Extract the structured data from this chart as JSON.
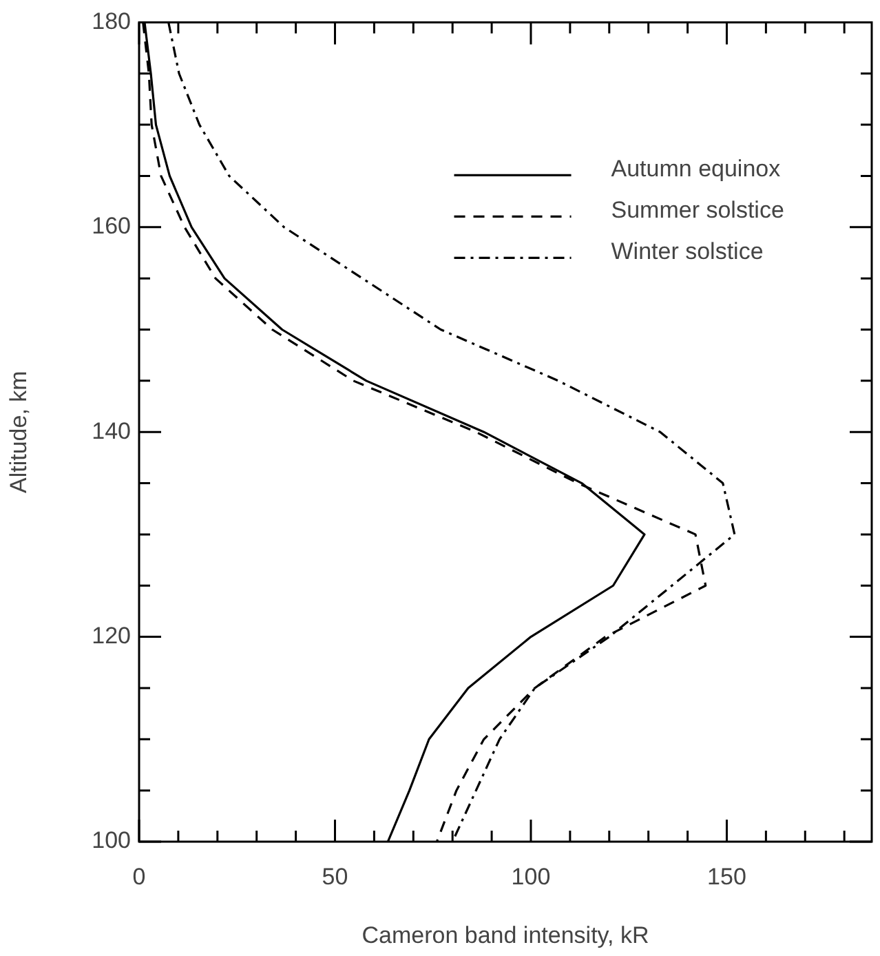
{
  "chart_data": {
    "type": "line",
    "orientation": "horizontal",
    "xlabel": "Cameron band intensity, kR",
    "ylabel": "Altitude, km",
    "x": [
      180,
      175,
      170,
      165,
      160,
      155,
      150,
      145,
      140,
      135,
      130,
      125,
      120,
      115,
      110,
      105,
      100
    ],
    "series": [
      {
        "name": "Autumn equinox",
        "color": "#000000",
        "line_style": "solid",
        "values": [
          1.4,
          3,
          4.3,
          7.8,
          13.4,
          21.8,
          36.5,
          58,
          88,
          113,
          129,
          121,
          100,
          84,
          74,
          69,
          63.5
        ]
      },
      {
        "name": "Summer solstice",
        "color": "#000000",
        "line_style": "dashed",
        "values": [
          1,
          2.5,
          3.2,
          5.6,
          11.6,
          19.5,
          34,
          54.7,
          86,
          112,
          142,
          144.6,
          119,
          101,
          88,
          81,
          76
        ]
      },
      {
        "name": "Winter solstice",
        "color": "#000000",
        "line_style": "dashdot",
        "values": [
          7.5,
          10.2,
          15.4,
          23,
          37,
          57,
          77,
          107,
          133,
          149,
          152,
          136,
          120,
          101,
          92,
          86,
          80
        ]
      }
    ],
    "xlim": [
      0,
      187
    ],
    "xticks": [
      0,
      {
        "value": 10,
        "label": null
      },
      {
        "value": 20,
        "label": null
      },
      {
        "value": 30,
        "label": null
      },
      {
        "value": 40,
        "label": null
      },
      50,
      {
        "value": 60,
        "label": null
      },
      {
        "value": 70,
        "label": null
      },
      {
        "value": 80,
        "label": null
      },
      {
        "value": 90,
        "label": null
      },
      100,
      {
        "value": 110,
        "label": null
      },
      {
        "value": 120,
        "label": null
      },
      {
        "value": 130,
        "label": null
      },
      {
        "value": 140,
        "label": null
      },
      150,
      {
        "value": 160,
        "label": null
      },
      {
        "value": 170,
        "label": null
      },
      {
        "value": 180,
        "label": null
      }
    ],
    "ylim": [
      100,
      180
    ],
    "yticks": [
      100,
      {
        "value": 105,
        "label": null
      },
      {
        "value": 110,
        "label": null
      },
      {
        "value": 115,
        "label": null
      },
      120,
      {
        "value": 125,
        "label": null
      },
      {
        "value": 130,
        "label": null
      },
      {
        "value": 135,
        "label": null
      },
      140,
      {
        "value": 145,
        "label": null
      },
      {
        "value": 150,
        "label": null
      },
      {
        "value": 155,
        "label": null
      },
      160,
      {
        "value": 165,
        "label": null
      },
      {
        "value": 170,
        "label": null
      },
      {
        "value": 175,
        "label": null
      },
      180
    ],
    "grid": false,
    "legend": "top right",
    "marker": "none"
  }
}
